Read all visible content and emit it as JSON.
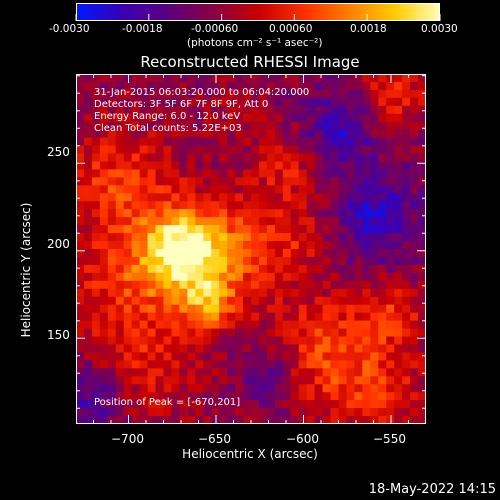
{
  "colorbar": {
    "ticks": [
      "-0.0030",
      "-0.0018",
      "-0.00060",
      "0.00060",
      "0.0018",
      "0.0030"
    ],
    "unit_label": "(photons cm⁻² s⁻¹ asec⁻²)",
    "colors": [
      "#0018ff",
      "#3a00b4",
      "#5a0080",
      "#8a0040",
      "#c80000",
      "#ff3000",
      "#ff8000",
      "#ffcc00",
      "#ffffc0"
    ]
  },
  "chart_data": {
    "type": "heatmap",
    "title": "Reconstructed RHESSI Image",
    "xlabel": "Heliocentric X (arcsec)",
    "ylabel": "Heliocentric Y (arcsec)",
    "xlim": [
      -730,
      -530
    ],
    "ylim": [
      101,
      301
    ],
    "x_ticks": [
      -700,
      -650,
      -600,
      -550
    ],
    "y_ticks": [
      150,
      200,
      250
    ],
    "x_tick_labels": [
      "−700",
      "−650",
      "−600",
      "−550"
    ],
    "y_tick_labels": [
      "150",
      "200",
      "250"
    ],
    "color_range": [
      -0.003,
      0.003
    ],
    "peak": [
      -670,
      201
    ],
    "sources": [
      {
        "x": -670,
        "y": 201,
        "sigma": 16,
        "amp": 0.0033
      },
      {
        "x": -655,
        "y": 170,
        "sigma": 11,
        "amp": 0.002
      },
      {
        "x": -640,
        "y": 200,
        "sigma": 22,
        "amp": 0.0016
      },
      {
        "x": -705,
        "y": 240,
        "sigma": 22,
        "amp": 0.0015
      },
      {
        "x": -700,
        "y": 180,
        "sigma": 24,
        "amp": 0.0014
      },
      {
        "x": -590,
        "y": 145,
        "sigma": 22,
        "amp": 0.0013
      },
      {
        "x": -560,
        "y": 120,
        "sigma": 22,
        "amp": 0.0012
      },
      {
        "x": -550,
        "y": 165,
        "sigma": 14,
        "amp": 0.0011
      },
      {
        "x": -548,
        "y": 290,
        "sigma": 14,
        "amp": 0.0012
      },
      {
        "x": -610,
        "y": 248,
        "sigma": 14,
        "amp": 0.001
      },
      {
        "x": -690,
        "y": 130,
        "sigma": 22,
        "amp": 0.0009
      },
      {
        "x": -600,
        "y": 210,
        "sigma": 14,
        "amp": 0.0008
      },
      {
        "x": -640,
        "y": 280,
        "sigma": 12,
        "amp": 0.0006
      },
      {
        "x": -580,
        "y": 270,
        "sigma": 14,
        "amp": -0.0015
      },
      {
        "x": -620,
        "y": 130,
        "sigma": 12,
        "amp": -0.001
      },
      {
        "x": -560,
        "y": 220,
        "sigma": 18,
        "amp": -0.0014
      },
      {
        "x": -720,
        "y": 115,
        "sigma": 14,
        "amp": -0.0012
      }
    ]
  },
  "info": {
    "time_range": "31-Jan-2015 06:03:20.000 to 06:04:20.000",
    "detectors": "Detectors: 3F 5F 6F 7F 8F 9F, Att 0",
    "energy": "Energy Range: 6.0 - 12.0 keV",
    "clean": "Clean     Total counts: 5.22E+03",
    "peak": "Position of Peak = [-670,201]"
  },
  "footer": "18-May-2022 14:15"
}
